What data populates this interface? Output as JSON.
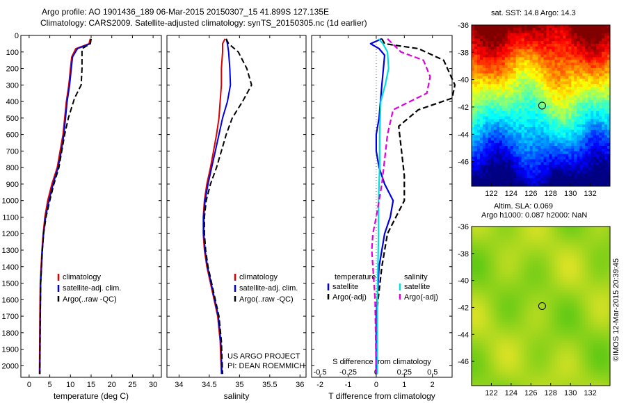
{
  "header": {
    "title_line1": "Argo profile: AO 1901436_189 06-Mar-2015 20150307_15 41.899S 127.135E",
    "title_line2": "Climatology: CARS2009. Satellite-adjusted climatology: synTS_20150305.nc (1d earlier)"
  },
  "side": {
    "sst_title": "sat. SST: 14.8 Argo: 14.3",
    "sla_title1": "Altim. SLA: 0.069",
    "sla_title2": "Argo h1000: 0.087 h2000: NaN",
    "imos_stamp": "©IMOS 12-Mar-2015 20:39:45"
  },
  "colors": {
    "climatology": "#dd0000",
    "satellite": "#0000dd",
    "argo": "#000000",
    "salinity_satellite": "#00dddd",
    "salinity_argo": "#dd00dd"
  },
  "chart_data": [
    {
      "type": "line",
      "panel": "temperature",
      "xlabel": "temperature (deg C)",
      "xlim": [
        -2,
        32
      ],
      "xticks": [
        0,
        5,
        10,
        15,
        20,
        25,
        30
      ],
      "ylim": [
        2070,
        0
      ],
      "yticks": [
        0,
        100,
        200,
        300,
        400,
        500,
        600,
        700,
        800,
        900,
        1000,
        1100,
        1200,
        1300,
        1400,
        1500,
        1600,
        1700,
        1800,
        1900,
        2000
      ],
      "legend": [
        "climatology",
        "satellite-adj. clim.",
        "Argo(..raw -QC)"
      ],
      "series": [
        {
          "name": "climatology",
          "x": [
            14.8,
            14.5,
            11.3,
            10.3,
            10.0,
            9.6,
            9.0,
            8.6,
            8.2,
            7.5,
            6.8,
            5.5,
            4.5,
            3.8,
            3.4,
            3.1,
            2.9,
            2.7,
            2.6,
            2.5
          ],
          "y": [
            20,
            50,
            80,
            130,
            200,
            300,
            400,
            500,
            600,
            700,
            800,
            900,
            1000,
            1100,
            1200,
            1300,
            1400,
            1500,
            1700,
            2050
          ]
        },
        {
          "name": "satellite-adj. clim.",
          "x": [
            15.0,
            14.8,
            11.7,
            10.5,
            10.2,
            9.8,
            9.2,
            8.8,
            8.4,
            7.8,
            7.0,
            5.8,
            4.8,
            4.0,
            3.5,
            3.2,
            3.0,
            2.8,
            2.7,
            2.6
          ],
          "y": [
            20,
            50,
            80,
            130,
            200,
            300,
            400,
            500,
            600,
            700,
            800,
            900,
            1000,
            1100,
            1200,
            1300,
            1400,
            1500,
            1700,
            2050
          ]
        },
        {
          "name": "Argo(..raw -QC)",
          "x": [
            15.0,
            14.8,
            12.8,
            12.8,
            12.8,
            12.6,
            11.0,
            9.5,
            8.6,
            7.9,
            7.2,
            6.0,
            5.0,
            4.1,
            3.5,
            3.2,
            3.0,
            2.8,
            2.7,
            2.6
          ],
          "y": [
            20,
            50,
            80,
            130,
            200,
            300,
            380,
            500,
            600,
            700,
            800,
            900,
            1000,
            1100,
            1200,
            1300,
            1400,
            1500,
            1700,
            2050
          ]
        }
      ]
    },
    {
      "type": "line",
      "panel": "salinity",
      "xlabel": "salinity",
      "xlim": [
        33.8,
        36.1
      ],
      "xticks": [
        34,
        34.5,
        35,
        35.5,
        36
      ],
      "xticklabels": [
        "34",
        "34.5",
        "35",
        "35.5",
        "36"
      ],
      "ylim": [
        2070,
        0
      ],
      "legend": [
        "climatology",
        "satellite-adj. clim.",
        "Argo(..raw -QC)"
      ],
      "annotation": [
        "US ARGO PROJECT",
        "PI: DEAN ROEMMICH"
      ],
      "series": [
        {
          "name": "climatology",
          "x": [
            34.76,
            34.72,
            34.72,
            34.7,
            34.7,
            34.68,
            34.66,
            34.62,
            34.57,
            34.52,
            34.46,
            34.42,
            34.4,
            34.4,
            34.42,
            34.46,
            34.52,
            34.58,
            34.64,
            34.68,
            34.7
          ],
          "y": [
            20,
            50,
            100,
            200,
            300,
            400,
            500,
            600,
            700,
            800,
            900,
            1000,
            1100,
            1200,
            1300,
            1400,
            1500,
            1600,
            1700,
            1850,
            2050
          ]
        },
        {
          "name": "satellite-adj. clim.",
          "x": [
            34.78,
            34.8,
            34.82,
            34.84,
            34.85,
            34.8,
            34.72,
            34.66,
            34.6,
            34.54,
            34.48,
            34.43,
            34.41,
            34.41,
            34.43,
            34.47,
            34.53,
            34.59,
            34.65,
            34.69,
            34.71
          ],
          "y": [
            20,
            50,
            100,
            200,
            300,
            400,
            500,
            600,
            700,
            800,
            900,
            1000,
            1100,
            1200,
            1300,
            1400,
            1500,
            1600,
            1700,
            1850,
            2050
          ]
        },
        {
          "name": "Argo(..raw -QC)",
          "x": [
            34.78,
            34.82,
            34.98,
            35.12,
            35.2,
            35.05,
            34.88,
            34.78,
            34.7,
            34.62,
            34.52,
            34.45,
            34.42,
            34.42,
            34.44,
            34.48,
            34.54,
            34.6,
            34.66,
            34.7,
            34.72
          ],
          "y": [
            20,
            50,
            100,
            200,
            300,
            400,
            500,
            600,
            700,
            800,
            900,
            1000,
            1100,
            1200,
            1300,
            1400,
            1500,
            1600,
            1700,
            1850,
            2050
          ]
        }
      ]
    },
    {
      "type": "line",
      "panel": "difference",
      "xlabel": "T difference from climatology",
      "top_label": "S difference from climatology",
      "xlim": [
        -2.3,
        2.7
      ],
      "xticks": [
        -2,
        -1,
        0,
        1,
        2
      ],
      "top_xticks": [
        -0.5,
        -0.25,
        0,
        0.25,
        0.5
      ],
      "ylim": [
        2070,
        0
      ],
      "legend_titles": [
        "temperature",
        "salinity"
      ],
      "legend": [
        "satellite",
        "Argo(-adj)",
        "satellite",
        "Argo(-adj)"
      ],
      "series": [
        {
          "name": "satellite",
          "quantity": "temperature",
          "x": [
            0.2,
            -0.2,
            0.1,
            0.3,
            0.2,
            0.1,
            0.0,
            0.0,
            0.1,
            0.3,
            0.6,
            0.5,
            0.3,
            0.1,
            0.0,
            0.0
          ],
          "y": [
            20,
            50,
            80,
            120,
            300,
            500,
            600,
            700,
            800,
            900,
            1000,
            1100,
            1200,
            1400,
            1700,
            2050
          ]
        },
        {
          "name": "Argo(-adj)",
          "quantity": "temperature",
          "x": [
            0.2,
            0.3,
            1.5,
            2.4,
            2.8,
            2.7,
            1.5,
            0.8,
            0.9,
            1.0,
            1.0,
            0.7,
            0.4,
            0.2,
            0.0,
            0.0
          ],
          "y": [
            20,
            50,
            80,
            150,
            300,
            380,
            450,
            550,
            700,
            850,
            1000,
            1100,
            1200,
            1400,
            1700,
            2050
          ]
        },
        {
          "name": "satellite",
          "quantity": "salinity",
          "x": [
            0.02,
            0.06,
            0.1,
            0.11,
            0.08,
            0.04,
            0.03,
            0.03,
            0.02,
            0.02,
            0.01,
            0.01
          ],
          "y": [
            20,
            50,
            100,
            200,
            300,
            400,
            600,
            800,
            1000,
            1200,
            1600,
            2050
          ]
        },
        {
          "name": "Argo(-adj)",
          "quantity": "salinity",
          "x": [
            0.1,
            0.22,
            0.42,
            0.48,
            0.45,
            0.15,
            0.1,
            0.05,
            0.0,
            -0.03,
            -0.04,
            -0.01,
            0.0
          ],
          "y": [
            20,
            100,
            150,
            250,
            350,
            450,
            600,
            900,
            1100,
            1200,
            1300,
            1600,
            2050
          ]
        }
      ]
    },
    {
      "type": "heatmap",
      "panel": "sst-map",
      "title": "sat. SST: 14.8 Argo: 14.3",
      "xticks": [
        122,
        124,
        126,
        128,
        130,
        132
      ],
      "yticks": [
        -36,
        -38,
        -40,
        -42,
        -44,
        -46
      ],
      "xlim": [
        120,
        134
      ],
      "ylim": [
        -47.8,
        -36
      ],
      "marker": {
        "lon": 127.135,
        "lat": -41.899
      }
    },
    {
      "type": "heatmap",
      "panel": "sla-map",
      "title": "Altim. SLA: 0.069",
      "xticks": [
        122,
        124,
        126,
        128,
        130,
        132
      ],
      "yticks": [
        -36,
        -38,
        -40,
        -42,
        -44,
        -46
      ],
      "xlim": [
        120,
        134
      ],
      "ylim": [
        -47.8,
        -36
      ],
      "marker": {
        "lon": 127.135,
        "lat": -41.899
      }
    }
  ]
}
